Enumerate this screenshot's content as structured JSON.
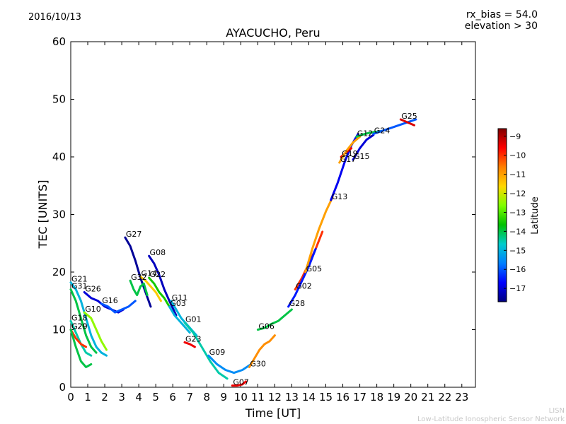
{
  "header": {
    "date": "2016/10/13",
    "rx_bias": "rx_bias = 54.0",
    "elevation": "elevation > 30"
  },
  "footer": {
    "line1": "LISN",
    "line2": "Low-Latitude Ionospheric Sensor Network"
  },
  "chart_data": {
    "type": "line",
    "title": "AYACUCHO, Peru",
    "xlabel": "Time [UT]",
    "ylabel": "TEC [UNITS]",
    "xlim": [
      0,
      23.8
    ],
    "ylim": [
      0,
      60
    ],
    "xticks": [
      0,
      1,
      2,
      3,
      4,
      5,
      6,
      7,
      8,
      9,
      10,
      11,
      12,
      13,
      14,
      15,
      16,
      17,
      18,
      19,
      20,
      21,
      22,
      23
    ],
    "yticks": [
      0,
      10,
      20,
      30,
      40,
      50,
      60
    ],
    "grid": false,
    "colorbar": {
      "label": "Latitude",
      "min": -17.7,
      "max": -8.6,
      "ticks": [
        -9,
        -10,
        -11,
        -12,
        -13,
        -14,
        -15,
        -16,
        -17
      ],
      "colormap": [
        "#00007f",
        "#0000ff",
        "#007fff",
        "#00cccc",
        "#00c000",
        "#7fff00",
        "#ffd700",
        "#ff7f00",
        "#ff0000",
        "#7f0000"
      ]
    },
    "series": [
      {
        "name": "G21",
        "lat": -15.0,
        "x": [
          0.0,
          0.3,
          0.6,
          0.9,
          1.2,
          1.5,
          1.8,
          2.1
        ],
        "y": [
          18.2,
          17.0,
          15.0,
          12.0,
          9.0,
          7.0,
          6.0,
          5.5
        ]
      },
      {
        "name": "G31",
        "lat": -14.0,
        "x": [
          0.0,
          0.3,
          0.6,
          0.9,
          1.2,
          1.5
        ],
        "y": [
          17.0,
          15.0,
          12.0,
          9.0,
          7.0,
          6.0
        ]
      },
      {
        "name": "G26",
        "lat": -17.0,
        "x": [
          0.8,
          1.2,
          1.6,
          2.0,
          2.4,
          2.8,
          3.1
        ],
        "y": [
          16.5,
          15.5,
          15.0,
          14.0,
          13.5,
          13.0,
          13.5
        ]
      },
      {
        "name": "G10",
        "lat": -12.5,
        "x": [
          0.8,
          1.2,
          1.5,
          1.8,
          2.1
        ],
        "y": [
          13.0,
          12.0,
          10.0,
          8.0,
          6.5
        ]
      },
      {
        "name": "G16",
        "lat": -16.0,
        "x": [
          1.8,
          2.2,
          2.6,
          3.0,
          3.4,
          3.8
        ],
        "y": [
          14.5,
          14.0,
          13.0,
          13.5,
          14.0,
          15.0
        ]
      },
      {
        "name": "G18",
        "lat": -14.5,
        "x": [
          0.0,
          0.3,
          0.6,
          0.9,
          1.2
        ],
        "y": [
          11.5,
          9.5,
          7.5,
          6.0,
          5.5
        ]
      },
      {
        "name": "G20",
        "lat": -10.0,
        "x": [
          0.0,
          0.3,
          0.6,
          0.9
        ],
        "y": [
          10.0,
          8.5,
          7.5,
          7.0
        ]
      },
      {
        "name": "G29",
        "lat": -14.0,
        "x": [
          0.0,
          0.3,
          0.6,
          0.9,
          1.2
        ],
        "y": [
          10.0,
          7.0,
          4.5,
          3.5,
          4.0
        ]
      },
      {
        "name": "G27",
        "lat": -17.5,
        "x": [
          3.2,
          3.5,
          3.8,
          4.1,
          4.4,
          4.7
        ],
        "y": [
          26.0,
          24.5,
          22.0,
          19.0,
          16.5,
          14.0
        ]
      },
      {
        "name": "G08",
        "lat": -17.2,
        "x": [
          4.6,
          4.9,
          5.2,
          5.5,
          5.8,
          6.2
        ],
        "y": [
          22.8,
          21.5,
          19.5,
          17.0,
          15.0,
          12.5
        ]
      },
      {
        "name": "G14",
        "lat": -11.5,
        "x": [
          4.1,
          4.4,
          4.7,
          5.0,
          5.3
        ],
        "y": [
          19.2,
          18.5,
          17.5,
          16.5,
          15.0
        ]
      },
      {
        "name": "G22",
        "lat": -13.5,
        "x": [
          4.6,
          4.9,
          5.2,
          5.5,
          5.8
        ],
        "y": [
          19.0,
          18.0,
          16.5,
          15.5,
          14.0
        ]
      },
      {
        "name": "G32",
        "lat": -14.0,
        "x": [
          3.5,
          3.7,
          3.9,
          4.1,
          4.3,
          4.5
        ],
        "y": [
          18.5,
          17.0,
          16.0,
          17.5,
          18.0,
          16.0
        ]
      },
      {
        "name": "G11",
        "lat": -15.0,
        "x": [
          5.9,
          6.2,
          6.5,
          6.8,
          7.1,
          7.4
        ],
        "y": [
          15.0,
          13.5,
          12.0,
          11.0,
          10.0,
          9.0
        ]
      },
      {
        "name": "G03",
        "lat": -15.0,
        "x": [
          5.8,
          6.1,
          6.4,
          6.7,
          7.0
        ],
        "y": [
          14.0,
          12.5,
          11.5,
          10.5,
          9.5
        ]
      },
      {
        "name": "G01",
        "lat": -14.5,
        "x": [
          6.7,
          7.2,
          7.7,
          8.2,
          8.7,
          9.2
        ],
        "y": [
          11.2,
          9.5,
          7.0,
          4.5,
          2.5,
          1.5
        ]
      },
      {
        "name": "G23",
        "lat": -9.5,
        "x": [
          6.7,
          7.0,
          7.3
        ],
        "y": [
          7.8,
          7.5,
          7.0
        ]
      },
      {
        "name": "G09",
        "lat": -15.5,
        "x": [
          8.1,
          8.6,
          9.1,
          9.6,
          10.1,
          10.6
        ],
        "y": [
          5.5,
          4.0,
          3.0,
          2.5,
          3.0,
          4.0
        ]
      },
      {
        "name": "G07",
        "lat": -9.5,
        "x": [
          9.5,
          9.8,
          10.1,
          10.3
        ],
        "y": [
          0.3,
          0.3,
          0.5,
          1.0
        ]
      },
      {
        "name": "G30",
        "lat": -10.8,
        "x": [
          10.5,
          10.8,
          11.1,
          11.4,
          11.7,
          12.0
        ],
        "y": [
          3.5,
          5.0,
          6.5,
          7.5,
          8.0,
          9.0
        ]
      },
      {
        "name": "G06",
        "lat": -14.0,
        "x": [
          11.0,
          11.4,
          11.8,
          12.2,
          12.6,
          13.0
        ],
        "y": [
          10.0,
          10.3,
          11.0,
          11.5,
          12.5,
          13.5
        ]
      },
      {
        "name": "G02",
        "lat": -10.0,
        "x": [
          13.2,
          13.6,
          14.0,
          14.4,
          14.8
        ],
        "y": [
          17.0,
          19.0,
          21.5,
          24.0,
          27.0
        ]
      },
      {
        "name": "G28",
        "lat": -16.5,
        "x": [
          12.8,
          13.2,
          13.6,
          14.0,
          14.4
        ],
        "y": [
          14.0,
          16.0,
          18.5,
          21.0,
          24.0
        ]
      },
      {
        "name": "G05",
        "lat": -11.0,
        "x": [
          13.8,
          14.2,
          14.6,
          15.0,
          15.4
        ],
        "y": [
          20.0,
          24.0,
          27.5,
          30.5,
          33.0
        ]
      },
      {
        "name": "G13",
        "lat": -16.8,
        "x": [
          15.3,
          15.7,
          16.1,
          16.5,
          16.9
        ],
        "y": [
          32.5,
          35.5,
          39.0,
          42.0,
          44.0
        ]
      },
      {
        "name": "G19",
        "lat": -9.5,
        "x": [
          15.9,
          16.2,
          16.5
        ],
        "y": [
          40.0,
          40.8,
          41.5
        ]
      },
      {
        "name": "G17",
        "lat": -11.0,
        "x": [
          15.8,
          16.2,
          16.6,
          17.0
        ],
        "y": [
          39.0,
          41.0,
          42.5,
          43.5
        ]
      },
      {
        "name": "G15",
        "lat": -17.0,
        "x": [
          16.6,
          17.0,
          17.4,
          17.8
        ],
        "y": [
          39.5,
          41.5,
          43.0,
          43.8
        ]
      },
      {
        "name": "G12",
        "lat": -14.0,
        "x": [
          16.8,
          17.3,
          17.8,
          18.3
        ],
        "y": [
          43.5,
          44.0,
          44.3,
          44.5
        ]
      },
      {
        "name": "G24",
        "lat": -16.0,
        "x": [
          17.8,
          18.3,
          18.8,
          19.3,
          19.8,
          20.3
        ],
        "y": [
          44.0,
          44.5,
          45.0,
          45.5,
          46.0,
          46.5
        ]
      },
      {
        "name": "G25",
        "lat": -9.3,
        "x": [
          19.4,
          19.8,
          20.2
        ],
        "y": [
          46.5,
          46.0,
          45.5
        ]
      }
    ]
  }
}
